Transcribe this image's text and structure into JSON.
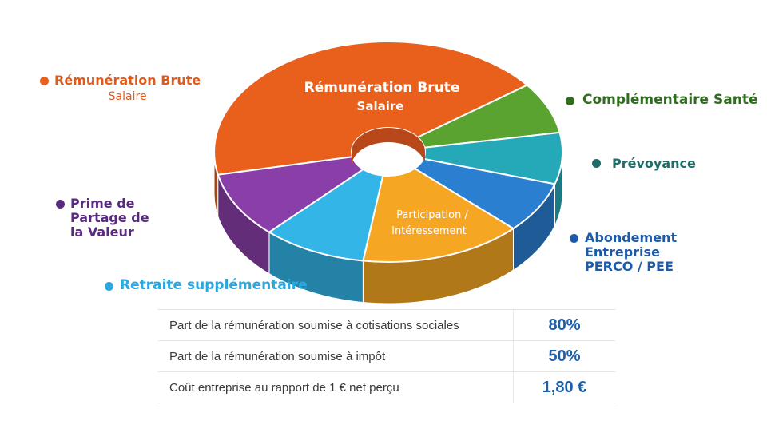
{
  "chart_data": {
    "type": "pie",
    "style": "3d-donut",
    "slices": [
      {
        "label": "Rémunération Brute",
        "sublabel": "Salaire",
        "value": 40,
        "color": "#e8601c"
      },
      {
        "label": "Complémentaire Santé",
        "value": 7,
        "color": "#5aa331"
      },
      {
        "label": "Prévoyance",
        "value": 7,
        "color": "#25a9b8"
      },
      {
        "label": "Abondement Entreprise PERCO / PEE",
        "value": 7,
        "color": "#2b7fd0"
      },
      {
        "label": "Participation / Intéressement",
        "value": 14,
        "color": "#f5a623"
      },
      {
        "label": "Retraite supplémentaire",
        "value": 9,
        "color": "#33b5e8"
      },
      {
        "label": "Prime de Partage de la Valeur",
        "value": 9,
        "color": "#8a3fa8"
      }
    ],
    "inner_labels": {
      "remuneration": "Rémunération Brute",
      "salaire": "Salaire",
      "participation_1": "Participation /",
      "participation_2": "Intéressement"
    }
  },
  "legend": {
    "remuneration": {
      "title": "Rémunération Brute",
      "sub": "Salaire",
      "color": "#e05a1c"
    },
    "prime": {
      "title": "Prime de Partage de la Valeur",
      "color": "#5a2a80"
    },
    "retraite": {
      "title": "Retraite supplémentaire",
      "color": "#2aa8e0"
    },
    "complementaire": {
      "title": "Complémentaire Santé",
      "color": "#2f6e1e"
    },
    "prevoyance": {
      "title": "Prévoyance",
      "color": "#1f6d6a"
    },
    "abondement": {
      "title": "Abondement Entreprise PERCO / PEE",
      "color": "#1d5aa8"
    }
  },
  "table": {
    "rows": [
      {
        "label": "Part de la rémunération soumise à cotisations sociales",
        "value": "80%"
      },
      {
        "label": "Part de la rémunération soumise à impôt",
        "value": "50%"
      },
      {
        "label": "Coût entreprise au rapport de 1 € net perçu",
        "value": "1,80 €"
      }
    ]
  }
}
